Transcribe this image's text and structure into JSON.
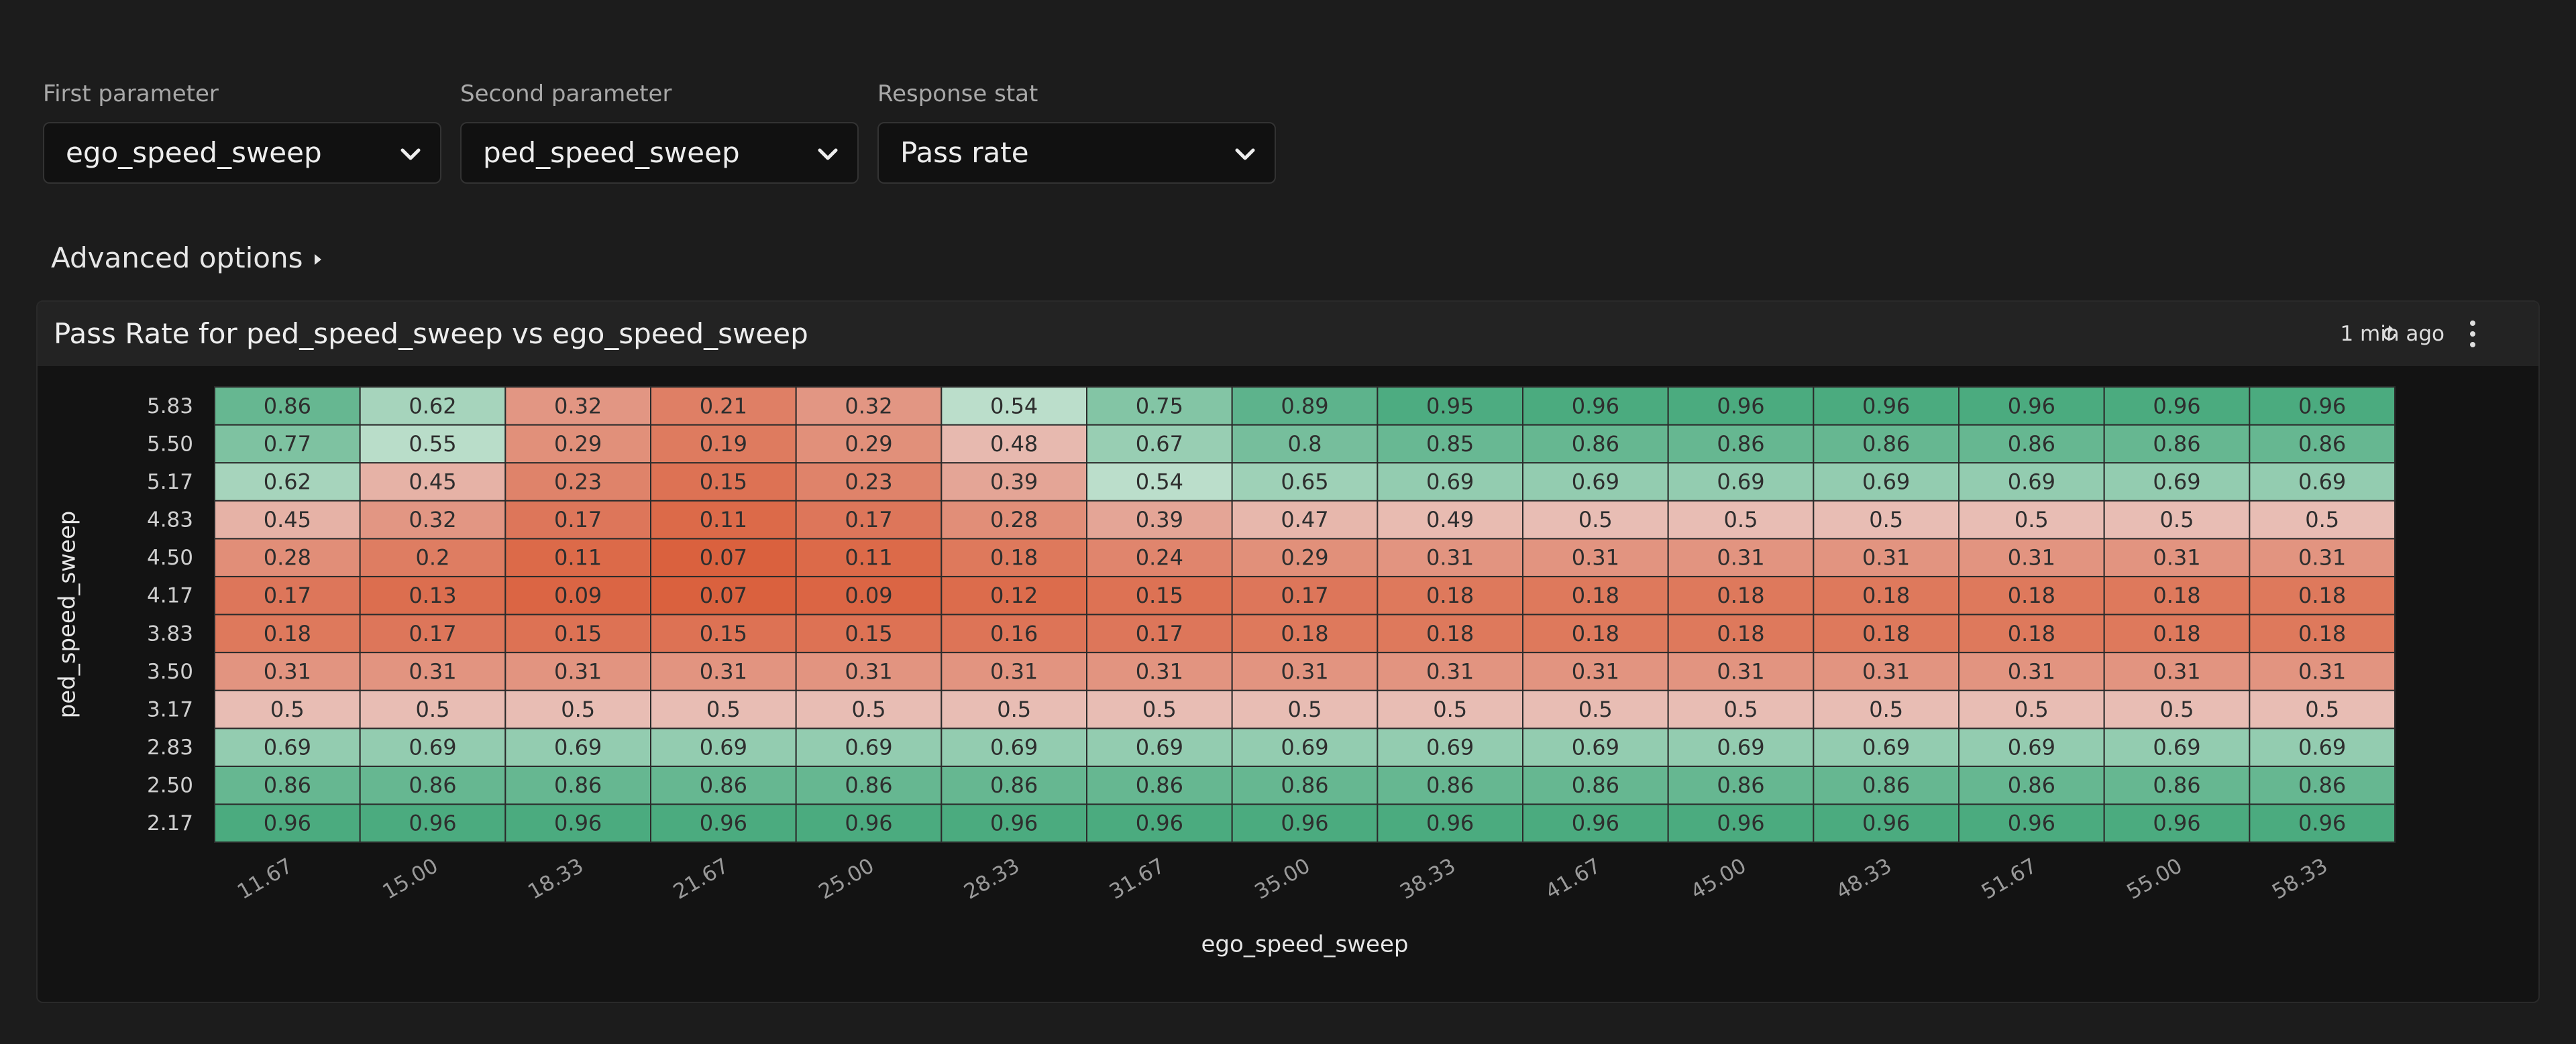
{
  "controls": [
    {
      "label": "First parameter",
      "value": "ego_speed_sweep"
    },
    {
      "label": "Second parameter",
      "value": "ped_speed_sweep"
    },
    {
      "label": "Response stat",
      "value": "Pass rate"
    }
  ],
  "advanced_options": "Advanced options",
  "panel": {
    "updated": "1 min ago"
  },
  "chart_data": {
    "type": "heatmap",
    "title": "Pass Rate for ped_speed_sweep vs ego_speed_sweep",
    "x_label": "ego_speed_sweep",
    "y_label": "ped_speed_sweep",
    "x_categories": [
      "11.67",
      "15.00",
      "18.33",
      "21.67",
      "25.00",
      "28.33",
      "31.67",
      "35.00",
      "38.33",
      "41.67",
      "45.00",
      "48.33",
      "51.67",
      "55.00",
      "58.33"
    ],
    "y_categories": [
      "2.17",
      "2.50",
      "2.83",
      "3.17",
      "3.50",
      "3.83",
      "4.17",
      "4.50",
      "4.83",
      "5.17",
      "5.50",
      "5.83"
    ],
    "values": [
      [
        0.96,
        0.96,
        0.96,
        0.96,
        0.96,
        0.96,
        0.96,
        0.96,
        0.96,
        0.96,
        0.96,
        0.96,
        0.96,
        0.96,
        0.96
      ],
      [
        0.86,
        0.86,
        0.86,
        0.86,
        0.86,
        0.86,
        0.86,
        0.86,
        0.86,
        0.86,
        0.86,
        0.86,
        0.86,
        0.86,
        0.86
      ],
      [
        0.69,
        0.69,
        0.69,
        0.69,
        0.69,
        0.69,
        0.69,
        0.69,
        0.69,
        0.69,
        0.69,
        0.69,
        0.69,
        0.69,
        0.69
      ],
      [
        0.5,
        0.5,
        0.5,
        0.5,
        0.5,
        0.5,
        0.5,
        0.5,
        0.5,
        0.5,
        0.5,
        0.5,
        0.5,
        0.5,
        0.5
      ],
      [
        0.31,
        0.31,
        0.31,
        0.31,
        0.31,
        0.31,
        0.31,
        0.31,
        0.31,
        0.31,
        0.31,
        0.31,
        0.31,
        0.31,
        0.31
      ],
      [
        0.18,
        0.17,
        0.15,
        0.15,
        0.15,
        0.16,
        0.17,
        0.18,
        0.18,
        0.18,
        0.18,
        0.18,
        0.18,
        0.18,
        0.18
      ],
      [
        0.17,
        0.13,
        0.09,
        0.07,
        0.09,
        0.12,
        0.15,
        0.17,
        0.18,
        0.18,
        0.18,
        0.18,
        0.18,
        0.18,
        0.18
      ],
      [
        0.28,
        0.2,
        0.11,
        0.07,
        0.11,
        0.18,
        0.24,
        0.29,
        0.31,
        0.31,
        0.31,
        0.31,
        0.31,
        0.31,
        0.31
      ],
      [
        0.45,
        0.32,
        0.17,
        0.11,
        0.17,
        0.28,
        0.39,
        0.47,
        0.49,
        0.5,
        0.5,
        0.5,
        0.5,
        0.5,
        0.5
      ],
      [
        0.62,
        0.45,
        0.23,
        0.15,
        0.23,
        0.39,
        0.54,
        0.65,
        0.69,
        0.69,
        0.69,
        0.69,
        0.69,
        0.69,
        0.69
      ],
      [
        0.77,
        0.55,
        0.29,
        0.19,
        0.29,
        0.48,
        0.67,
        0.8,
        0.85,
        0.86,
        0.86,
        0.86,
        0.86,
        0.86,
        0.86
      ],
      [
        0.86,
        0.62,
        0.32,
        0.21,
        0.32,
        0.54,
        0.75,
        0.89,
        0.95,
        0.96,
        0.96,
        0.96,
        0.96,
        0.96,
        0.96
      ]
    ],
    "colorscale": [
      [
        0,
        "#d8522b"
      ],
      [
        0.5,
        "#e8bdb4"
      ],
      [
        0.5,
        "#c6e3d2"
      ],
      [
        1,
        "#40a678"
      ]
    ]
  }
}
